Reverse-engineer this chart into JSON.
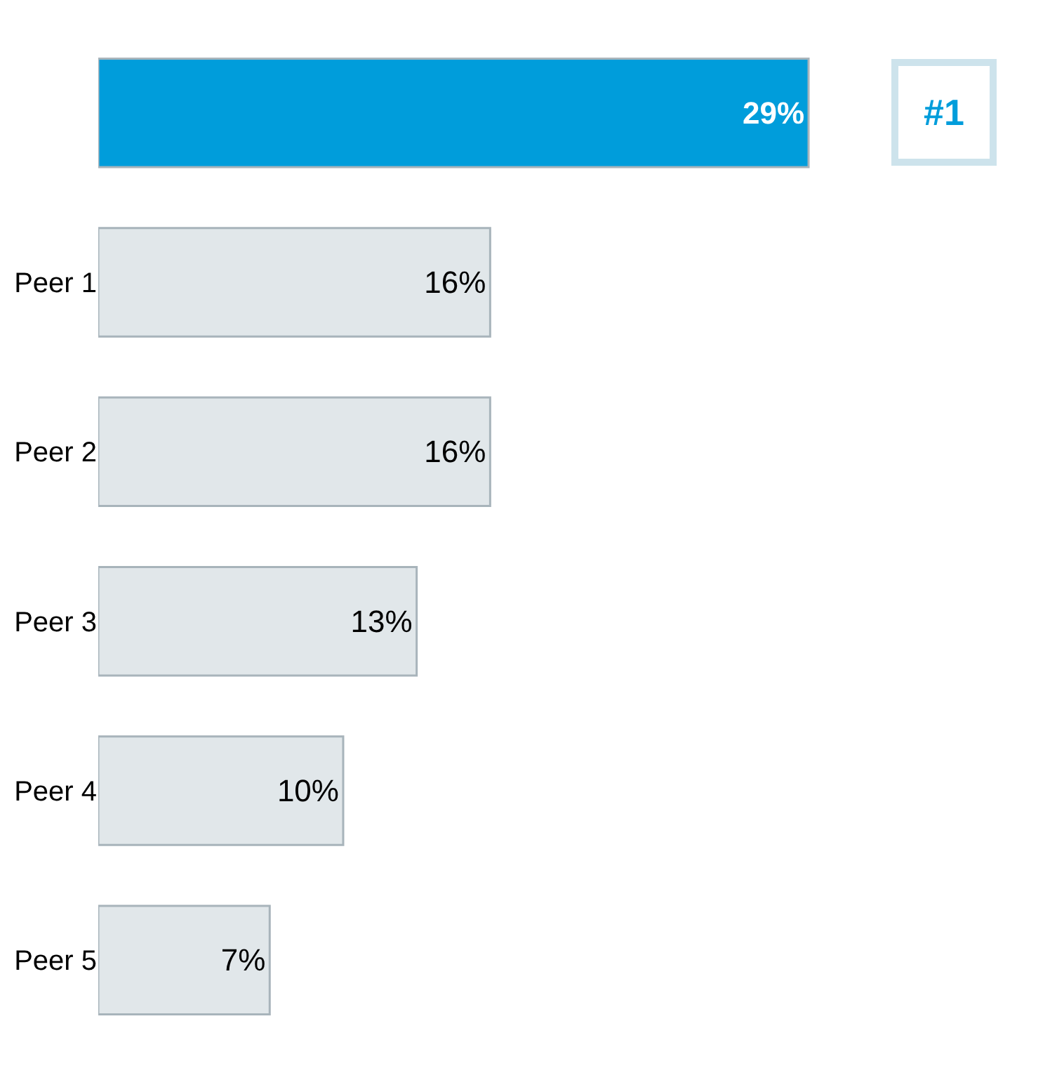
{
  "chart_data": {
    "type": "bar",
    "orientation": "horizontal",
    "categories": [
      null,
      "Peer 1",
      "Peer 2",
      "Peer 3",
      "Peer 4",
      "Peer 5"
    ],
    "values": [
      29,
      16,
      16,
      13,
      10,
      7
    ],
    "value_labels": [
      "29%",
      "16%",
      "16%",
      "13%",
      "10%",
      "7%"
    ],
    "colors": [
      "#009ddb",
      "#e1e7ea",
      "#e1e7ea",
      "#e1e7ea",
      "#e1e7ea",
      "#e1e7ea"
    ],
    "tick_labels": "y",
    "annotations": [
      "#1"
    ]
  }
}
